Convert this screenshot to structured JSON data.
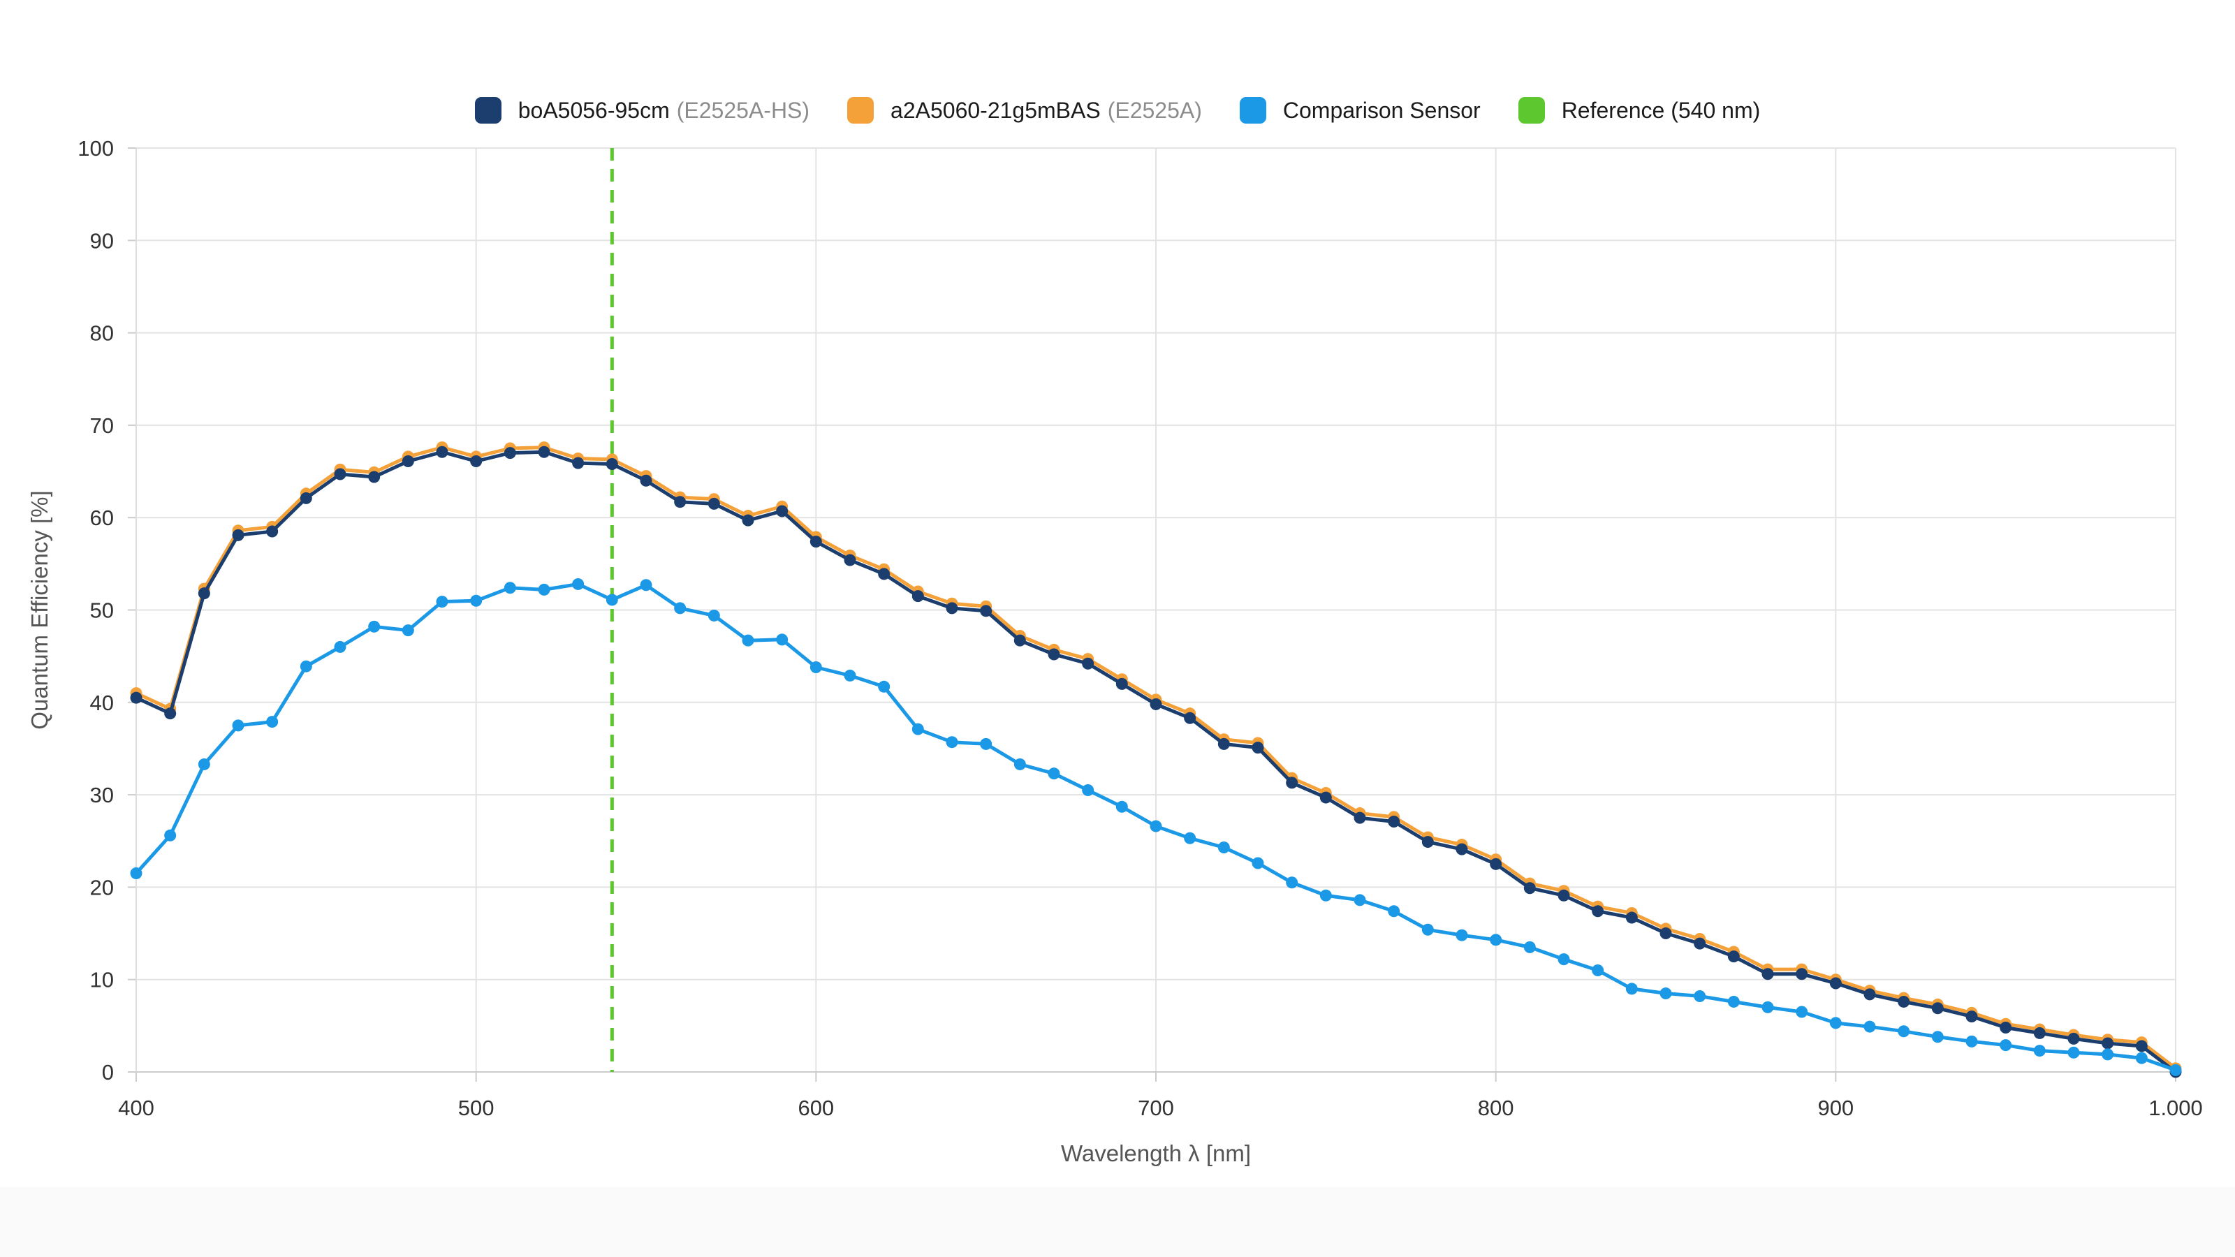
{
  "legend": [
    {
      "name": "boA5056-95cm",
      "sub": "(E2525A-HS)",
      "color": "#1b3e6e"
    },
    {
      "name": "a2A5060-21g5mBAS",
      "sub": "(E2525A)",
      "color": "#f4a13a"
    },
    {
      "name": "Comparison Sensor",
      "sub": "",
      "color": "#1b99e6"
    },
    {
      "name": "Reference (540 nm)",
      "sub": "",
      "color": "#5cc72e"
    }
  ],
  "chart_data": {
    "type": "line",
    "xlabel": "Wavelength λ [nm]",
    "ylabel": "Quantum Efficiency [%]",
    "xlim": [
      400,
      1000
    ],
    "ylim": [
      0,
      100
    ],
    "xticks": [
      400,
      500,
      600,
      700,
      800,
      900,
      1000
    ],
    "xtick_labels": [
      "400",
      "500",
      "600",
      "700",
      "800",
      "900",
      "1.000"
    ],
    "yticks": [
      0,
      10,
      20,
      30,
      40,
      50,
      60,
      70,
      80,
      90,
      100
    ],
    "grid": true,
    "legend_position": "top-center",
    "reference_line": {
      "name": "Reference (540 nm)",
      "x": 540,
      "color": "#5cc72e",
      "style": "dashed"
    },
    "x": [
      400,
      410,
      420,
      430,
      440,
      450,
      460,
      470,
      480,
      490,
      500,
      510,
      520,
      530,
      540,
      550,
      560,
      570,
      580,
      590,
      600,
      610,
      620,
      630,
      640,
      650,
      660,
      670,
      680,
      690,
      700,
      710,
      720,
      730,
      740,
      750,
      760,
      770,
      780,
      790,
      800,
      810,
      820,
      830,
      840,
      850,
      860,
      870,
      880,
      890,
      900,
      910,
      920,
      930,
      940,
      950,
      960,
      970,
      980,
      990,
      1000
    ],
    "series": [
      {
        "name": "a2A5060-21g5mBAS",
        "color": "#f4a13a",
        "values": [
          41.0,
          39.3,
          52.3,
          58.6,
          59.0,
          62.6,
          65.2,
          64.9,
          66.6,
          67.6,
          66.6,
          67.5,
          67.6,
          66.4,
          66.3,
          64.5,
          62.2,
          62.0,
          60.2,
          61.2,
          57.9,
          55.9,
          54.4,
          52.0,
          50.7,
          50.4,
          47.2,
          45.7,
          44.7,
          42.5,
          40.3,
          38.8,
          36.0,
          35.6,
          31.8,
          30.2,
          28.0,
          27.6,
          25.4,
          24.6,
          23.0,
          20.4,
          19.6,
          17.9,
          17.2,
          15.5,
          14.4,
          13.0,
          11.1,
          11.1,
          10.0,
          8.8,
          8.0,
          7.3,
          6.4,
          5.2,
          4.6,
          4.0,
          3.5,
          3.2,
          0.4
        ]
      },
      {
        "name": "boA5056-95cm",
        "color": "#1b3e6e",
        "values": [
          40.5,
          38.8,
          51.8,
          58.1,
          58.5,
          62.1,
          64.7,
          64.4,
          66.1,
          67.1,
          66.1,
          67.0,
          67.1,
          65.9,
          65.8,
          64.0,
          61.7,
          61.5,
          59.7,
          60.7,
          57.4,
          55.4,
          53.9,
          51.5,
          50.2,
          49.9,
          46.7,
          45.2,
          44.2,
          42.0,
          39.8,
          38.3,
          35.5,
          35.1,
          31.3,
          29.7,
          27.5,
          27.1,
          24.9,
          24.1,
          22.5,
          19.9,
          19.1,
          17.4,
          16.7,
          15.0,
          13.9,
          12.5,
          10.6,
          10.6,
          9.6,
          8.4,
          7.6,
          6.9,
          6.0,
          4.8,
          4.2,
          3.6,
          3.1,
          2.8,
          0.0
        ]
      },
      {
        "name": "Comparison Sensor",
        "color": "#1b99e6",
        "values": [
          21.5,
          25.6,
          33.3,
          37.5,
          37.9,
          43.9,
          46.0,
          48.2,
          47.8,
          50.9,
          51.0,
          52.4,
          52.2,
          52.8,
          51.1,
          52.7,
          50.2,
          49.4,
          46.7,
          46.8,
          43.8,
          42.9,
          41.7,
          37.1,
          35.7,
          35.5,
          33.3,
          32.3,
          30.5,
          28.7,
          26.6,
          25.3,
          24.3,
          22.6,
          20.5,
          19.1,
          18.6,
          17.4,
          15.4,
          14.8,
          14.3,
          13.5,
          12.2,
          11.0,
          9.0,
          8.5,
          8.2,
          7.6,
          7.0,
          6.5,
          5.3,
          4.9,
          4.4,
          3.8,
          3.3,
          2.9,
          2.3,
          2.1,
          1.9,
          1.5,
          0.2
        ]
      }
    ]
  }
}
